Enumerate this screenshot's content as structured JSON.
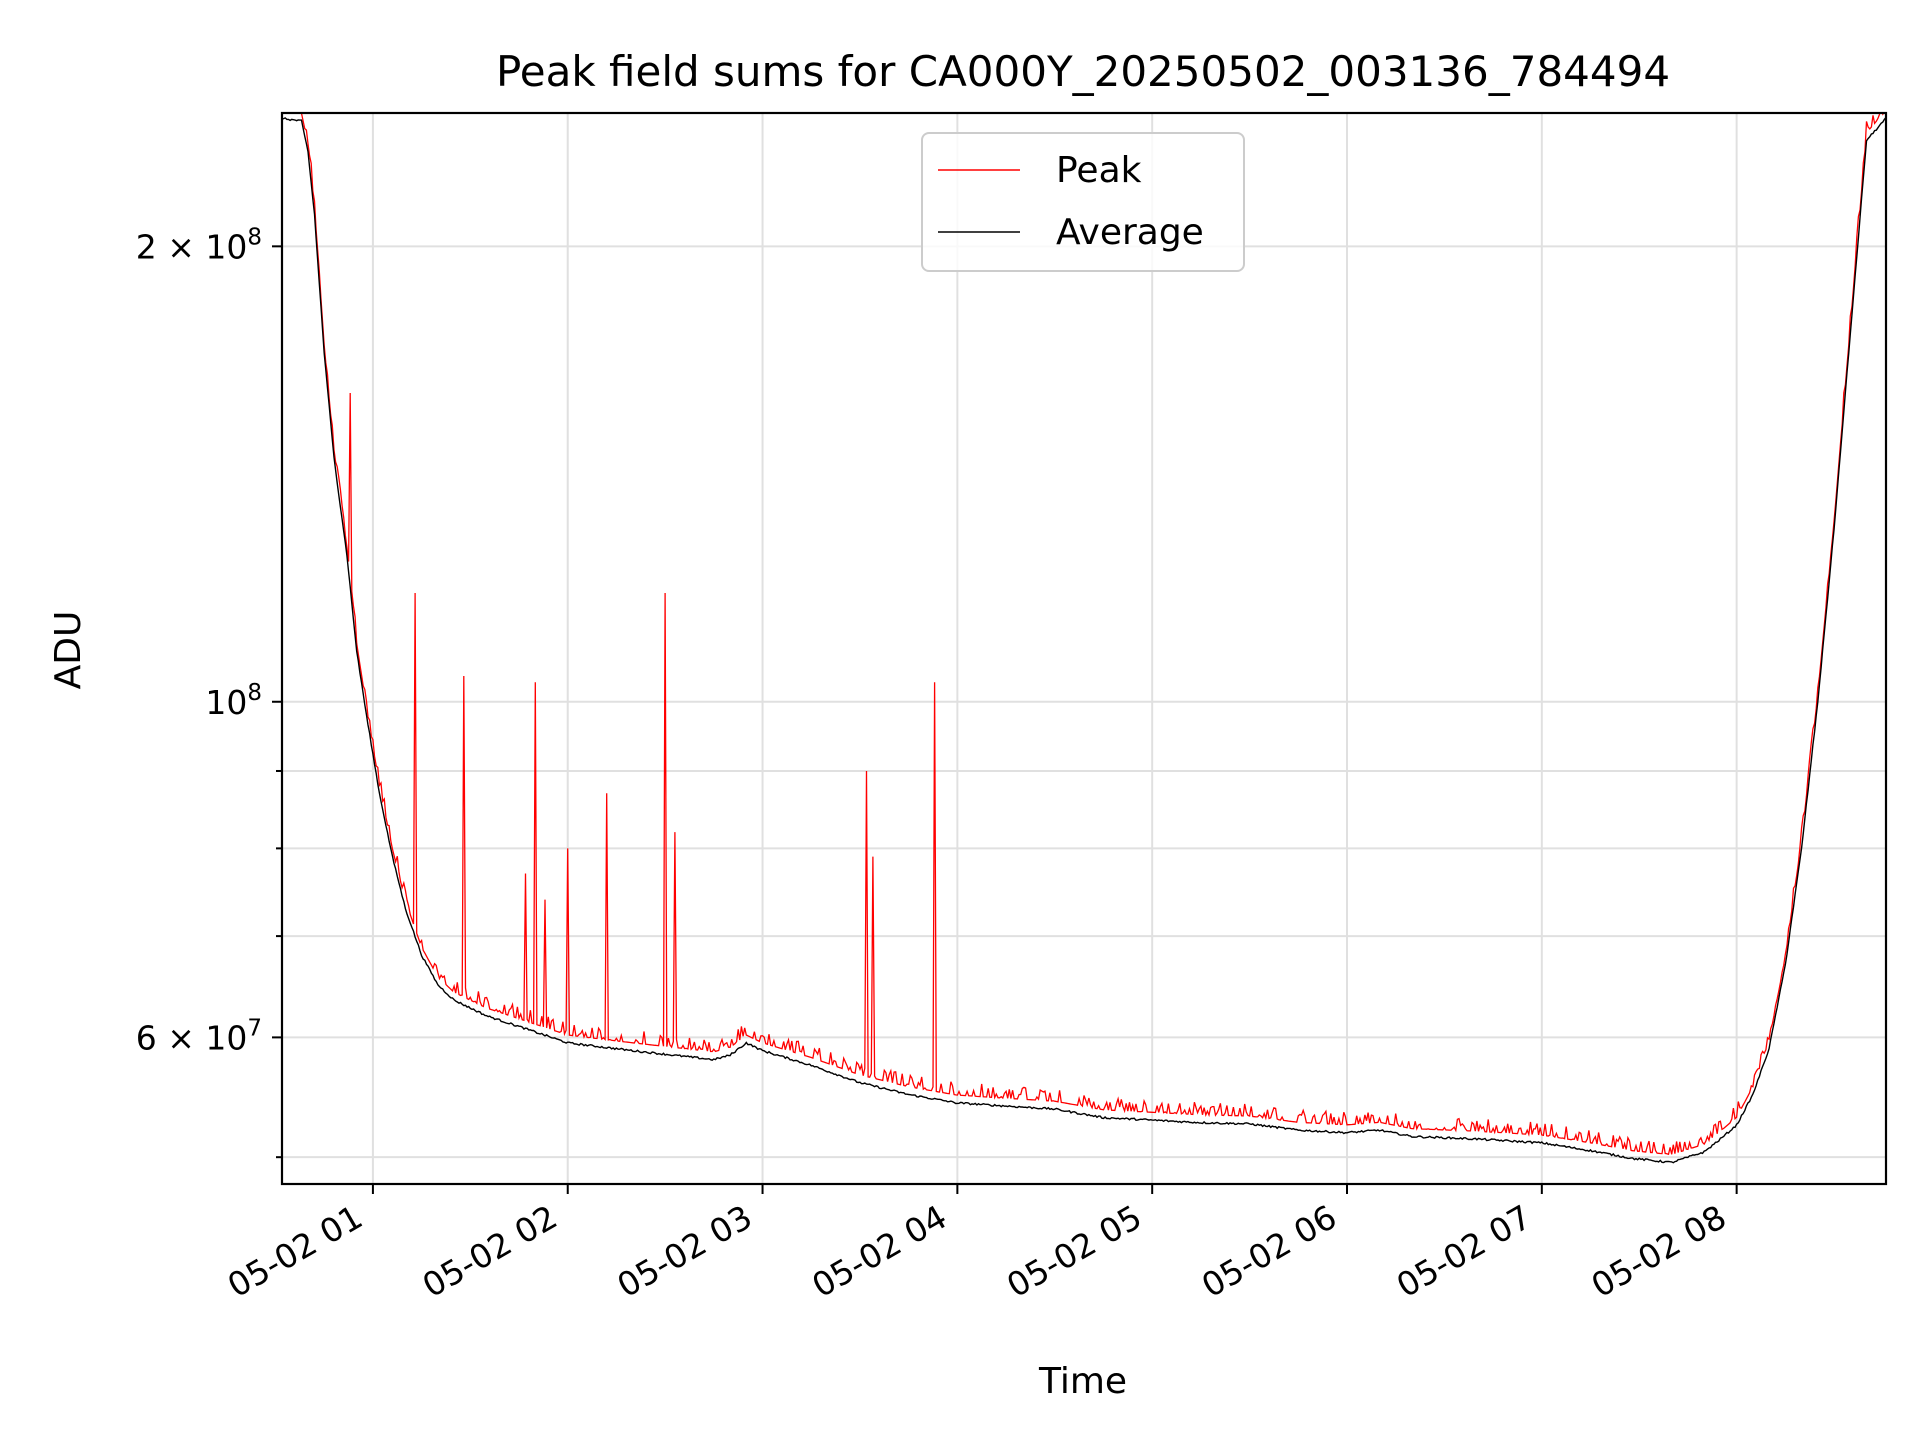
{
  "chart_data": {
    "type": "line",
    "title": "Peak field sums for CA000Y_20250502_003136_784494",
    "xlabel": "Time",
    "ylabel": "ADU",
    "yscale": "log",
    "xlim": [
      "2025-05-02 00:32",
      "2025-05-02 08:46"
    ],
    "ylim": [
      48000000,
      245000000
    ],
    "grid": true,
    "legend_position": "upper-center",
    "x_ticks": [
      "2025-05-02 01:00",
      "2025-05-02 02:00",
      "2025-05-02 03:00",
      "2025-05-02 04:00",
      "2025-05-02 05:00",
      "2025-05-02 06:00",
      "2025-05-02 07:00",
      "2025-05-02 08:00"
    ],
    "x_tick_labels": [
      "05-02 01",
      "05-02 02",
      "05-02 03",
      "05-02 04",
      "05-02 05",
      "05-02 06",
      "05-02 07",
      "05-02 08"
    ],
    "y_ticks": [
      {
        "value": 60000000,
        "mantissa": "6",
        "exponent": "7"
      },
      {
        "value": 100000000,
        "mantissa": "",
        "exponent": "8"
      },
      {
        "value": 200000000,
        "mantissa": "2",
        "exponent": "8"
      }
    ],
    "y_minor_ticks": [
      50000000,
      70000000,
      80000000,
      90000000
    ],
    "series": [
      {
        "name": "Average",
        "color": "#000000",
        "points": [
          [
            "2025-05-02 00:32",
            243000000
          ],
          [
            "2025-05-02 00:38",
            242000000
          ],
          [
            "2025-05-02 00:40",
            231000000
          ],
          [
            "2025-05-02 00:42",
            210000000
          ],
          [
            "2025-05-02 00:45",
            170000000
          ],
          [
            "2025-05-02 00:48",
            145000000
          ],
          [
            "2025-05-02 00:52",
            125000000
          ],
          [
            "2025-05-02 00:55",
            108000000
          ],
          [
            "2025-05-02 00:58",
            98000000
          ],
          [
            "2025-05-02 01:02",
            87000000
          ],
          [
            "2025-05-02 01:06",
            79000000
          ],
          [
            "2025-05-02 01:10",
            73000000
          ],
          [
            "2025-05-02 01:15",
            68000000
          ],
          [
            "2025-05-02 01:20",
            65000000
          ],
          [
            "2025-05-02 01:25",
            63500000
          ],
          [
            "2025-05-02 01:35",
            62000000
          ],
          [
            "2025-05-02 01:45",
            61000000
          ],
          [
            "2025-05-02 02:00",
            59500000
          ],
          [
            "2025-05-02 02:20",
            58800000
          ],
          [
            "2025-05-02 02:45",
            58000000
          ],
          [
            "2025-05-02 02:50",
            58400000
          ],
          [
            "2025-05-02 02:55",
            59500000
          ],
          [
            "2025-05-02 03:00",
            58800000
          ],
          [
            "2025-05-02 03:15",
            57500000
          ],
          [
            "2025-05-02 03:30",
            56000000
          ],
          [
            "2025-05-02 03:45",
            55000000
          ],
          [
            "2025-05-02 04:00",
            54300000
          ],
          [
            "2025-05-02 04:30",
            53800000
          ],
          [
            "2025-05-02 04:45",
            53100000
          ],
          [
            "2025-05-02 05:00",
            52900000
          ],
          [
            "2025-05-02 05:15",
            52700000
          ],
          [
            "2025-05-02 05:30",
            52600000
          ],
          [
            "2025-05-02 05:45",
            52100000
          ],
          [
            "2025-05-02 06:00",
            51900000
          ],
          [
            "2025-05-02 06:10",
            52100000
          ],
          [
            "2025-05-02 06:20",
            51600000
          ],
          [
            "2025-05-02 06:40",
            51400000
          ],
          [
            "2025-05-02 07:00",
            51100000
          ],
          [
            "2025-05-02 07:15",
            50500000
          ],
          [
            "2025-05-02 07:28",
            49900000
          ],
          [
            "2025-05-02 07:40",
            49600000
          ],
          [
            "2025-05-02 07:50",
            50400000
          ],
          [
            "2025-05-02 07:55",
            51400000
          ],
          [
            "2025-05-02 08:00",
            52500000
          ],
          [
            "2025-05-02 08:05",
            55000000
          ],
          [
            "2025-05-02 08:10",
            59000000
          ],
          [
            "2025-05-02 08:15",
            67000000
          ],
          [
            "2025-05-02 08:20",
            80000000
          ],
          [
            "2025-05-02 08:25",
            100000000
          ],
          [
            "2025-05-02 08:30",
            130000000
          ],
          [
            "2025-05-02 08:35",
            175000000
          ],
          [
            "2025-05-02 08:40",
            235000000
          ],
          [
            "2025-05-02 08:46",
            243000000
          ]
        ]
      },
      {
        "name": "Peak",
        "color": "#ff0000",
        "baseline_offset": 1.012,
        "spikes": [
          [
            "2025-05-02 00:53",
            160000000
          ],
          [
            "2025-05-02 01:13",
            118000000
          ],
          [
            "2025-05-02 01:28",
            104000000
          ],
          [
            "2025-05-02 01:47",
            77000000
          ],
          [
            "2025-05-02 01:50",
            103000000
          ],
          [
            "2025-05-02 01:53",
            74000000
          ],
          [
            "2025-05-02 02:00",
            80000000
          ],
          [
            "2025-05-02 02:12",
            87000000
          ],
          [
            "2025-05-02 02:30",
            118000000
          ],
          [
            "2025-05-02 02:33",
            82000000
          ],
          [
            "2025-05-02 03:32",
            90000000
          ],
          [
            "2025-05-02 03:34",
            79000000
          ],
          [
            "2025-05-02 03:53",
            103000000
          ]
        ]
      }
    ]
  }
}
